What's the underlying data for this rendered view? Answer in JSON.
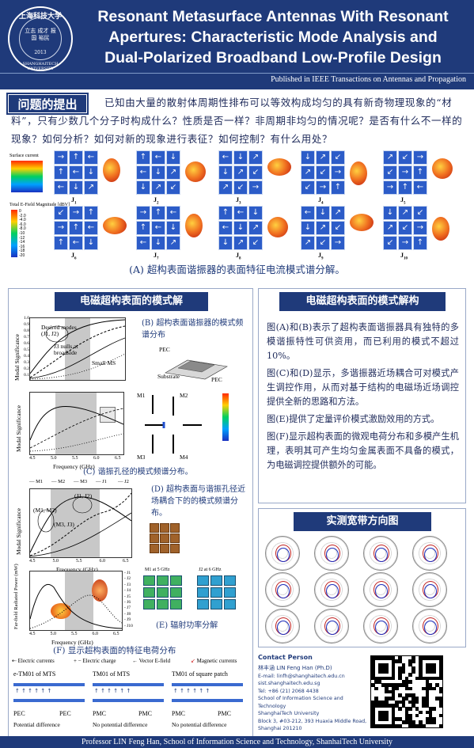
{
  "header": {
    "logo": {
      "top_text": "上海科技大学",
      "motto": "立志 成才 报国 裕民",
      "year": "2013",
      "bottom_text": "SHANGHAITECH UNIVERSITY"
    },
    "title_lines": [
      "Resonant Metasurface Antennas With Resonant",
      "Apertures: Characteristic  Mode Analysis and",
      "Dual-Polarized Broadband Low-Profile Design"
    ],
    "published": "Published in IEEE Transactions on Antennas and Propagation"
  },
  "question": {
    "badge": "问题的提出",
    "text": "已知由大量的散射体周期性排布可以等效构成均匀的具有新奇物理现象的“材料”，只有少数几个分子时构成什么？性质是否一样？非周期非均匀的情况呢？是否有什么不一样的现象？如何分析？如何对新的现象进行表征？如何控制？有什么用处？"
  },
  "figure_top": {
    "legend_surface": "Surface current",
    "legend_efield": "Total E-Field Magnitude [dBV]",
    "efield_ticks": [
      "0",
      "-2.0",
      "-4.0",
      "-6.0",
      "-8.0",
      "-10",
      "-12",
      "-14",
      "-16",
      "-18",
      "-20"
    ],
    "mode_labels": [
      "J1",
      "J2",
      "J3",
      "J4",
      "J5",
      "J6",
      "J7",
      "J8",
      "J9",
      "J10"
    ],
    "caption": "(A) 超构表面谐振器的表面特征电流模式谱分解。"
  },
  "left_panel": {
    "heading": "电磁超构表面的模式解",
    "fig_b": {
      "caption": "(B) 超构表面谐振器的模式频谱分布",
      "annotations": [
        "Desired modes (J1, J2)",
        "J3 nulls at broadside",
        "Small MS"
      ],
      "labels": [
        "PEC",
        "Substrate",
        "PEC"
      ],
      "ylabel": "Modal Significance",
      "yticks": [
        "1.0",
        "0.9",
        "0.8",
        "0.7",
        "0.6",
        "0.5",
        "0.4",
        "0.3",
        "0.2",
        "0.1"
      ]
    },
    "fig_c": {
      "caption": "(C) 谐振孔径的模式频谱分布。",
      "ylabel": "Modal Significance",
      "xlabel": "Frequency (GHz)",
      "xticks": [
        "4.5",
        "5.0",
        "5.5",
        "6.0",
        "6.5"
      ],
      "modes": [
        "M1",
        "M2",
        "M3",
        "M4"
      ]
    },
    "fig_d": {
      "caption": "(D) 超构表面与谐振孔径近场耦合下的的模式频谱分布。",
      "legend": [
        "M1",
        "M2",
        "M3",
        "J1",
        "J2"
      ],
      "annotations": [
        "(M1, M2)",
        "(M3, J3)",
        "(J1, J2)"
      ],
      "ylabel": "Modal Significance",
      "xlabel": "Frequency (GHz)",
      "xticks": [
        "4.5",
        "5.0",
        "5.5",
        "6.0",
        "6.5"
      ]
    },
    "fig_e": {
      "caption": "(E) 辐射功率分解",
      "ylabel": "Far-field Radiated Power (mW)",
      "xlabel": "Frequency (GHz)",
      "xticks": [
        "4.5",
        "5.0",
        "5.5",
        "6.0",
        "6.5"
      ],
      "legend": [
        "J1",
        "J2",
        "J3",
        "J4",
        "J5",
        "J6",
        "J7",
        "J8",
        "J9",
        "J10"
      ],
      "inset_labels": [
        "M1 at 5 GHz",
        "J2 at 6 GHz"
      ]
    },
    "fig_f": {
      "caption": "(F) 显示超构表面的特征电荷分布",
      "legend": [
        "Electric currents",
        "Electric charge",
        "Vector E-field",
        "Magnetic currents"
      ],
      "items": [
        {
          "title": "e-TM01 of MTS",
          "walls": [
            "PEC",
            "PEC"
          ],
          "note": "Potential difference"
        },
        {
          "title": "TM01 of MTS",
          "walls": [
            "PMC",
            "PMC"
          ],
          "note": "No potential difference"
        },
        {
          "title": "TM01 of square patch",
          "walls": [
            "PMC",
            "PMC"
          ],
          "note": "No potential difference"
        }
      ]
    }
  },
  "right_panel": {
    "heading": "电磁超构表面的模式解构",
    "paragraphs": [
      "图(A)和(B)表示了超构表面谐振器具有独特的多模谐振特性可供资用，而已利用的模式不超过10%。",
      "图(C)和(D)显示，多谐振器近场耦合可对模式产生调控作用，从而对基于结构的电磁场近场调控提供全新的思路和方法。",
      "图(E)提供了定量评价模式激励效用的方式。",
      "图(F)显示超构表面的微观电荷分布和多模产生机理，表明其可产生均匀金属表面不具备的模式，为电磁调控提供额外的可能。"
    ]
  },
  "measurement": {
    "heading": "实测宽带方向图"
  },
  "contact": {
    "title": "Contact Person",
    "lines": [
      "林丰涵 LIN Feng Han (Ph.D)",
      "E-mail: linfh@shanghaitech.edu.cn",
      "sist.shanghaitech.edu.sg",
      "Tel: +86 (21) 2068 4438",
      "School of Information Science and Technology",
      "ShanghaiTech University",
      "Block 3, #03-212, 393 Huaxia Middle Road,",
      "Shanghai 201210"
    ]
  },
  "footer": {
    "text": "Professor LIN Feng Han, School of Information Science and Technology, ShanhaiTech University"
  },
  "colors": {
    "navy": "#1f3a7a",
    "text_dark": "#1e2a5a",
    "panel_border": "#9aa9c8"
  }
}
